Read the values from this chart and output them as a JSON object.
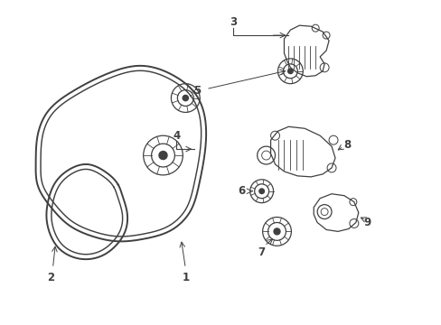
{
  "background_color": "#ffffff",
  "line_color": "#404040",
  "fig_width": 4.89,
  "fig_height": 3.6,
  "dpi": 100,
  "label_fontsize": 8.5,
  "label_fontweight": "bold",
  "belt_lw": 1.4,
  "component_lw": 0.9
}
